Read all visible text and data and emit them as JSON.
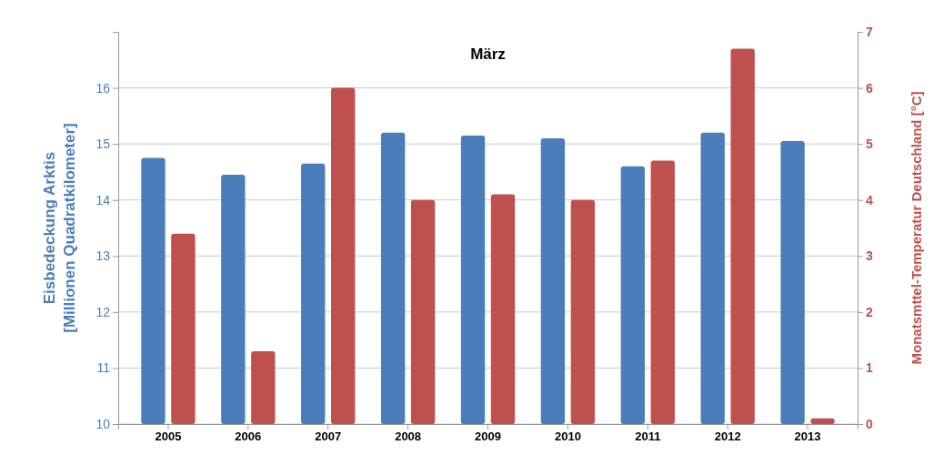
{
  "chart_data": {
    "type": "bar",
    "title": "März",
    "categories": [
      "2005",
      "2006",
      "2007",
      "2008",
      "2009",
      "2010",
      "2011",
      "2012",
      "2013"
    ],
    "series": [
      {
        "color": "#4a7ebb",
        "values": [
          14.75,
          14.45,
          14.65,
          15.2,
          15.15,
          15.1,
          14.6,
          15.2,
          15.05
        ]
      },
      {
        "color": "#c0504d",
        "axis": "y2",
        "values": [
          3.4,
          1.3,
          6.0,
          4.0,
          4.1,
          4.0,
          4.7,
          6.7,
          0.1
        ]
      }
    ],
    "ylim": [
      10,
      17
    ],
    "yticks": [
      10,
      11,
      12,
      13,
      14,
      15,
      16
    ],
    "y2lim": [
      0,
      7
    ],
    "y2ticks": [
      0,
      1,
      2,
      3,
      4,
      5,
      6,
      7
    ],
    "ylabel": "Eisbedeckung Arktis\n[Millionen Quadratkilometer]",
    "y2label": "Monatsmttel-Temperatur Deutschland [°C]",
    "grid": "y"
  }
}
